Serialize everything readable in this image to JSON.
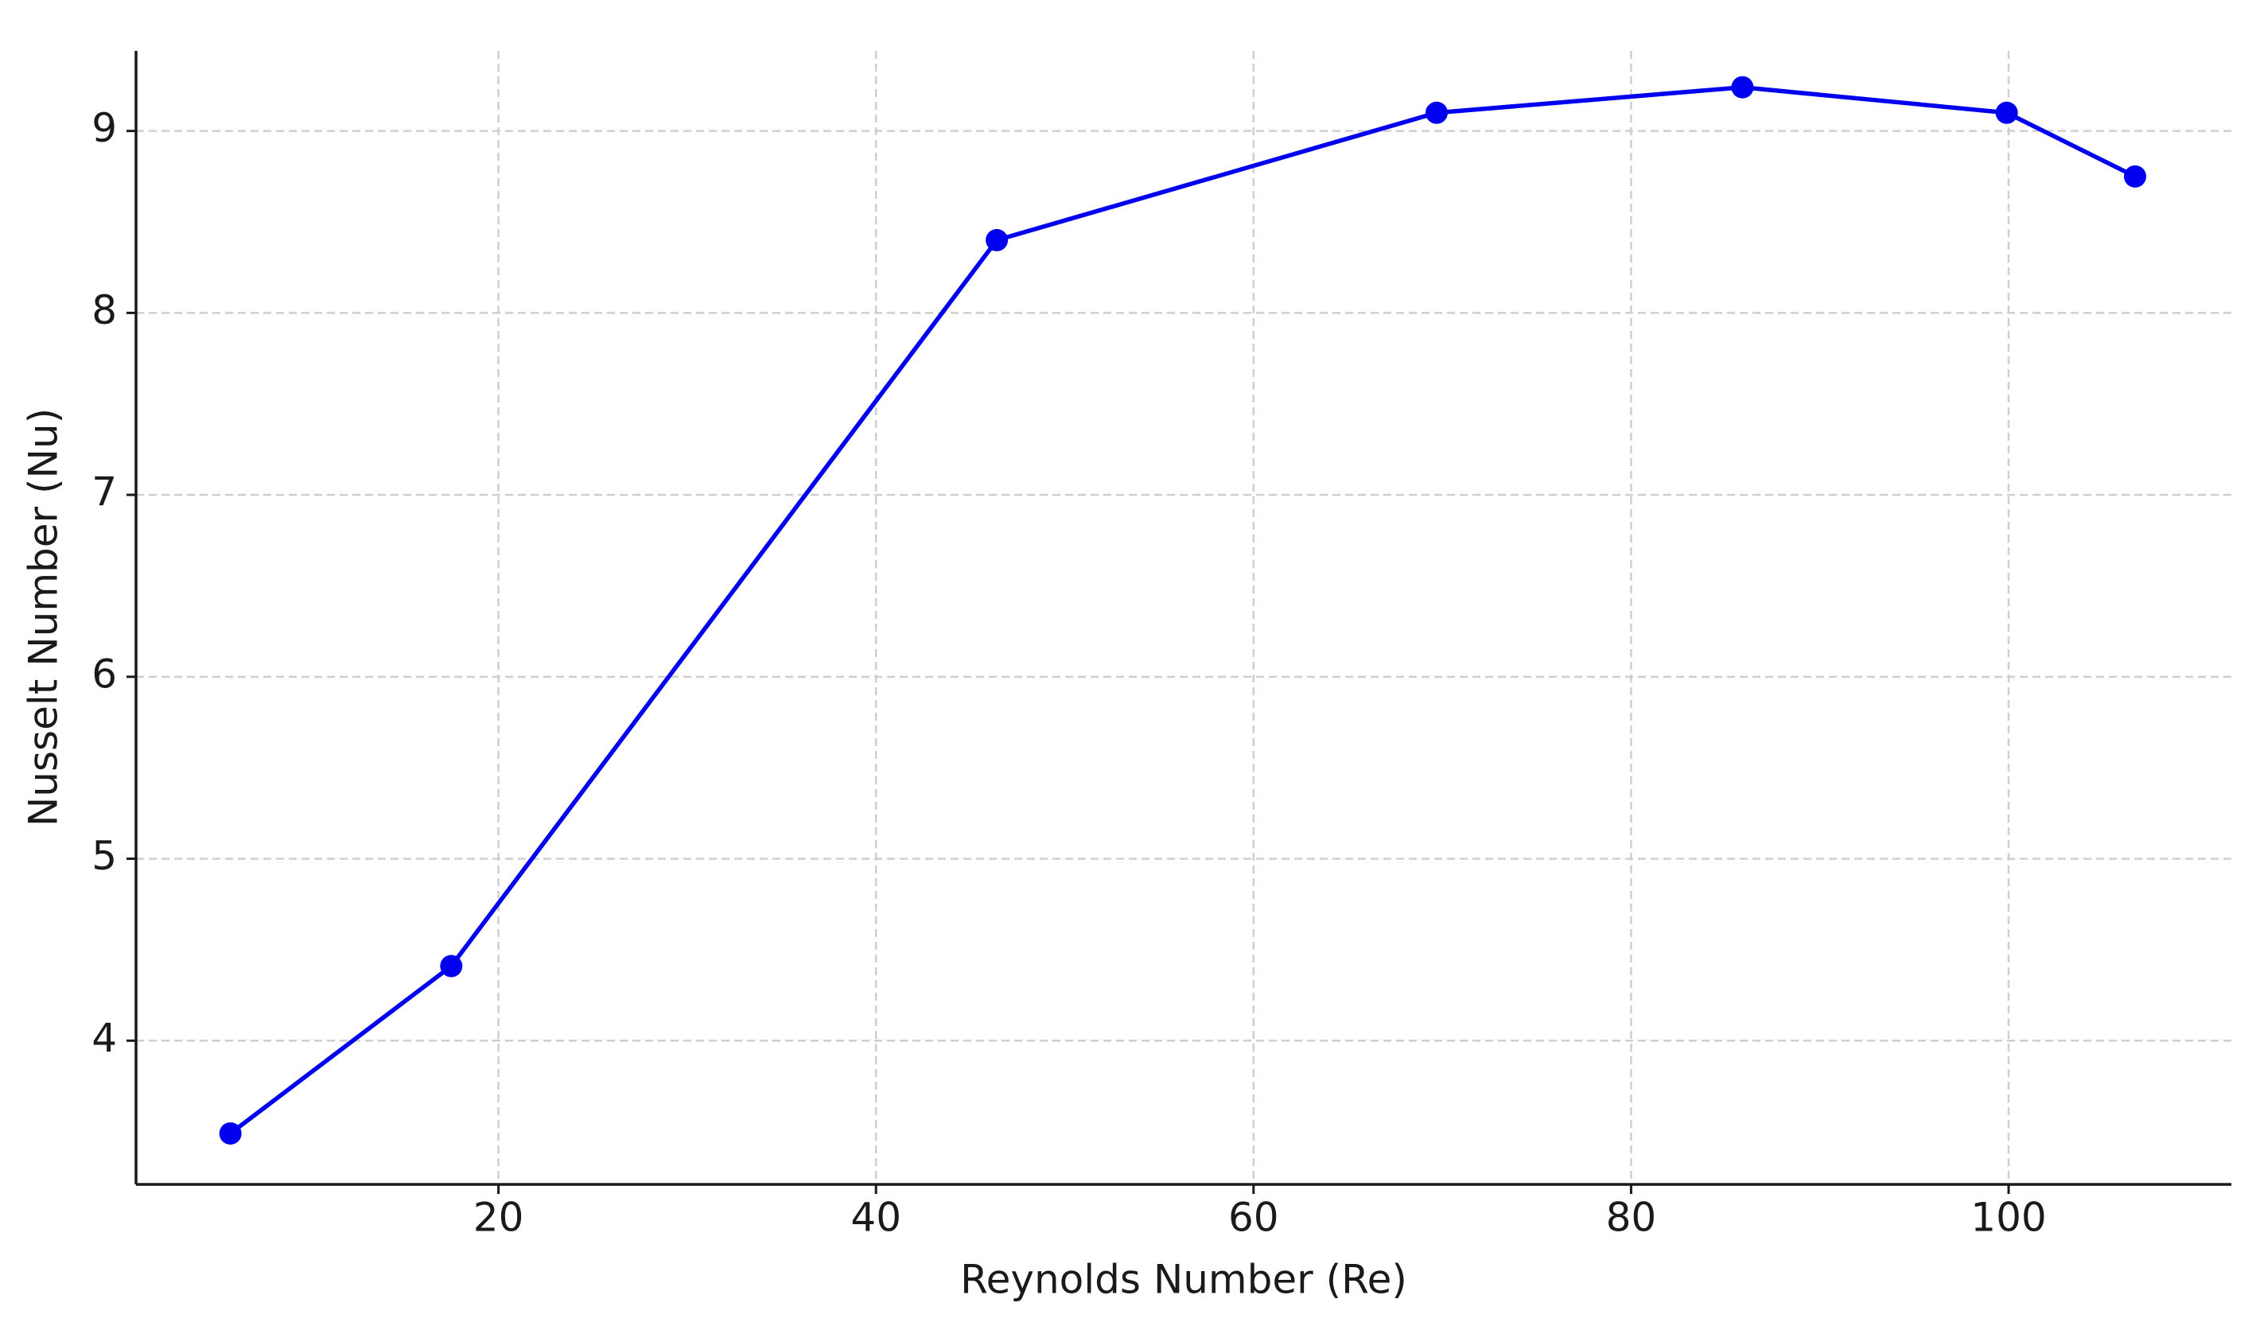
{
  "chart_data": {
    "type": "line",
    "x_label": "Reynolds Number (Re)",
    "y_label": "Nusselt Number (Nu)",
    "x": [
      5.8,
      17.5,
      46.4,
      69.7,
      85.9,
      99.9,
      106.7
    ],
    "series": [
      {
        "color": "#0000ee",
        "values": [
          3.49,
          4.41,
          8.4,
          9.1,
          9.24,
          9.1,
          8.75
        ]
      }
    ],
    "xlim": [
      0.8,
      111.8
    ],
    "xticks": [
      20,
      40,
      60,
      80,
      100
    ],
    "ylim": [
      3.21,
      9.44
    ],
    "yticks": [
      4,
      5,
      6,
      7,
      8,
      9
    ],
    "grid": true
  }
}
